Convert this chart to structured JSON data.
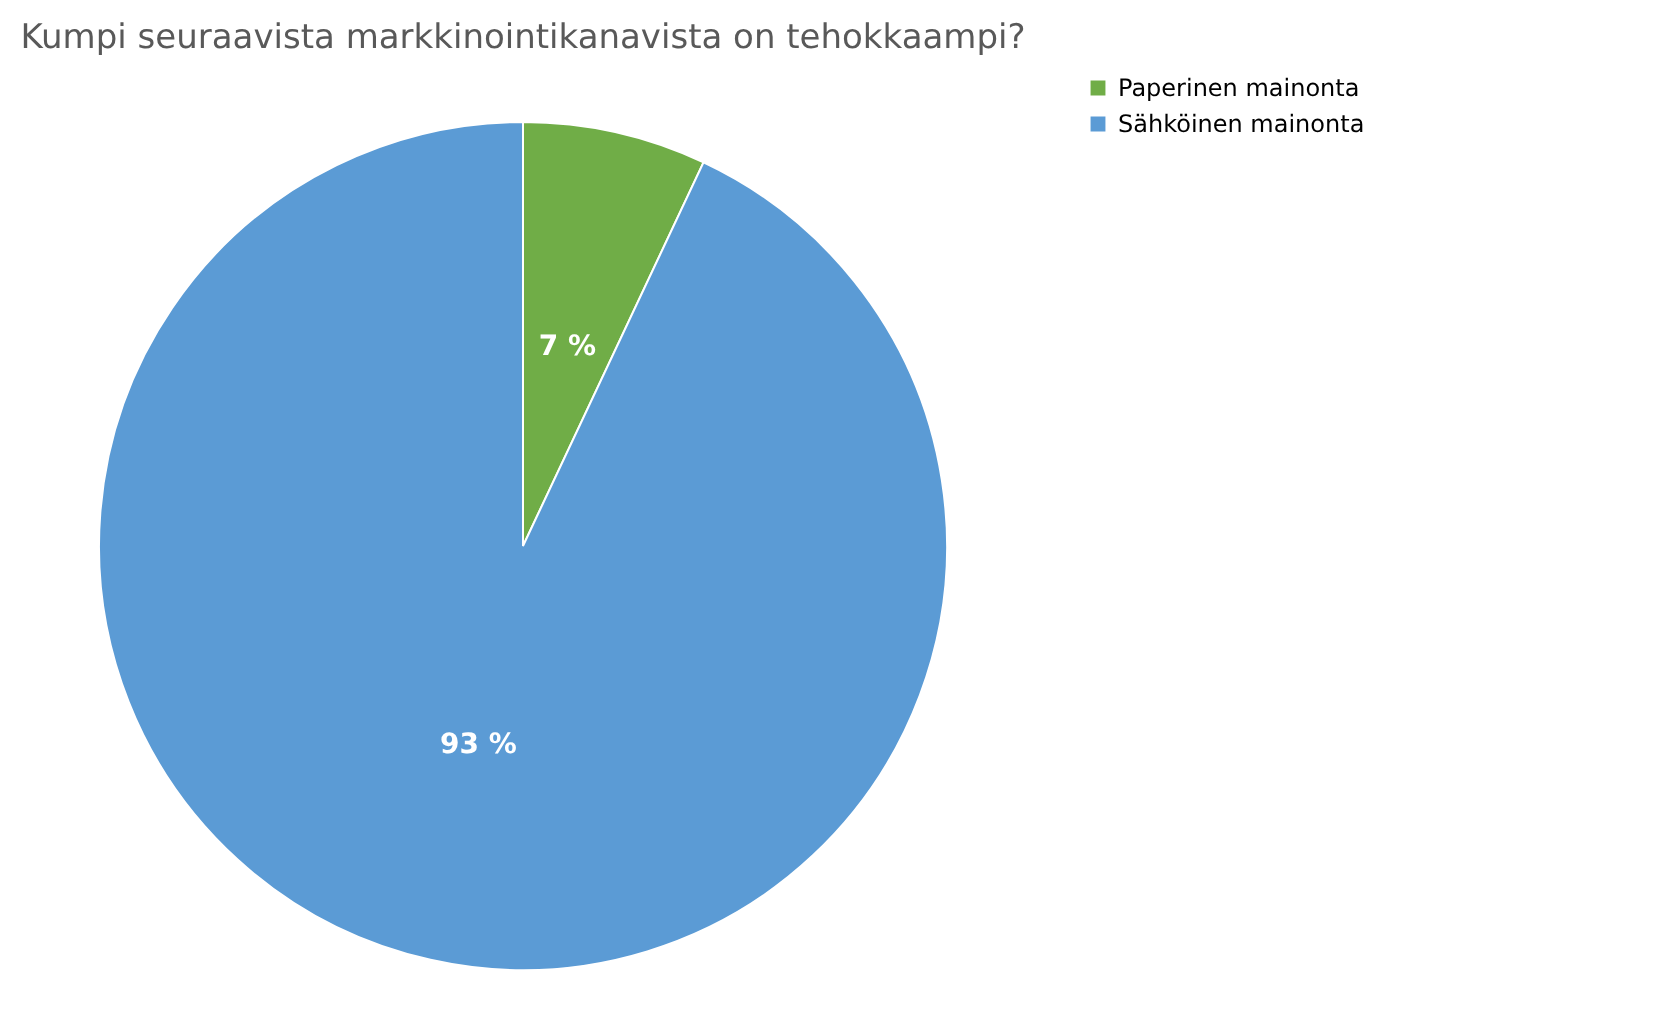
{
  "chart_data": {
    "type": "pie",
    "title": "Kumpi seuraavista markkinointikanavista on tehokkaampi?",
    "categories": [
      "Paperinen mainonta",
      "Sähköinen mainonta"
    ],
    "values": [
      7,
      93
    ],
    "colors": [
      "#70ad47",
      "#5b9bd5"
    ],
    "value_labels": [
      "7 %",
      "93 %"
    ],
    "legend": "right"
  }
}
